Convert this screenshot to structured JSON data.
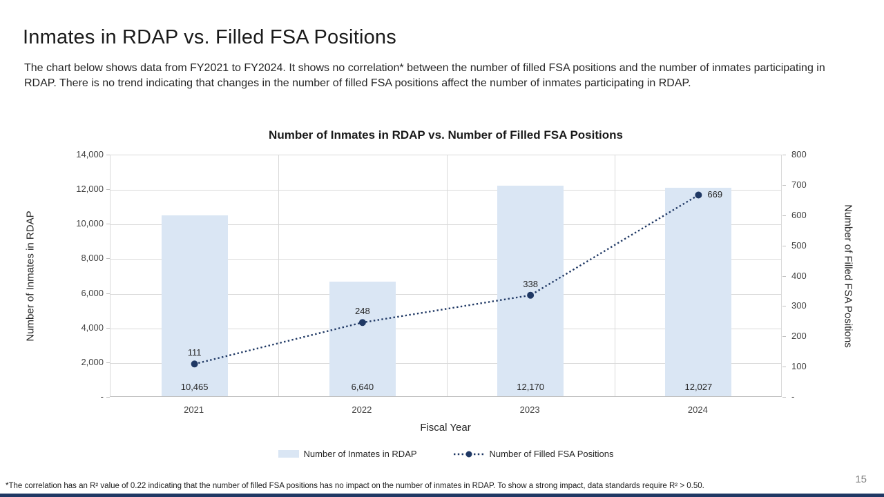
{
  "slide": {
    "title": "Inmates in RDAP vs. Filled FSA Positions",
    "body": "The chart below shows data from FY2021 to FY2024. It shows no correlation* between the number of filled FSA positions and the number of inmates participating in RDAP. There is no trend indicating that changes in the number of filled FSA positions affect the number of inmates participating in RDAP.",
    "footnote": "*The correlation has an R² value of 0.22 indicating that the number of filled FSA positions has no impact on the number of inmates in RDAP. To show a strong impact, data standards require R² > 0.50.",
    "page_number": "15"
  },
  "chart_data": {
    "type": "combo-bar-line",
    "title": "Number of Inmates in RDAP vs. Number of Filled FSA Positions",
    "categories": [
      "2021",
      "2022",
      "2023",
      "2024"
    ],
    "series": [
      {
        "name": "Number of Inmates in RDAP",
        "type": "bar",
        "axis": "left",
        "values": [
          10465,
          6640,
          12170,
          12027
        ],
        "labels": [
          "10,465",
          "6,640",
          "12,170",
          "12,027"
        ],
        "color": "#DAE6F4"
      },
      {
        "name": "Number of Filled FSA Positions",
        "type": "line",
        "axis": "right",
        "line_style": "dotted",
        "marker": "circle",
        "values": [
          111,
          248,
          338,
          669
        ],
        "labels": [
          "111",
          "248",
          "338",
          "669"
        ],
        "label_positions": [
          "above",
          "above",
          "above",
          "right"
        ],
        "color": "#1F3864"
      }
    ],
    "xlabel": "Fiscal Year",
    "left_axis": {
      "title": "Number of Inmates in RDAP",
      "min": 0,
      "max": 14000,
      "step": 2000,
      "tick_labels_top_to_bottom": [
        "14,000",
        "12,000",
        "10,000",
        "8,000",
        "6,000",
        "4,000",
        "2,000",
        "-"
      ]
    },
    "right_axis": {
      "title": "Number of Filled FSA Positions",
      "min": 0,
      "max": 800,
      "step": 100,
      "tick_labels_top_to_bottom": [
        "800",
        "700",
        "600",
        "500",
        "400",
        "300",
        "200",
        "100",
        "-"
      ]
    },
    "grid": {
      "horizontal": true,
      "vertical_category_boundaries": true,
      "color": "#D9D9D9"
    },
    "legend_position": "bottom"
  },
  "colors": {
    "accent_bar": "#1F3864",
    "bar_fill": "#DAE6F4",
    "line": "#1F3864",
    "gridline": "#D9D9D9",
    "axis_line": "#BFBFBF",
    "page_number": "#7F7F7F"
  }
}
